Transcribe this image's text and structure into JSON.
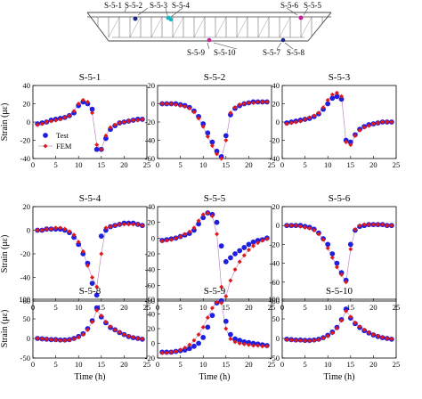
{
  "figure": {
    "colors": {
      "test": "#1f1fe0",
      "fem": "#e01a1a",
      "fem_line": "#c08ac8",
      "dot_cyan": "#17b6c4",
      "dot_magenta": "#c91e9c",
      "dot_navy": "#1c2a84"
    },
    "diagram": {
      "labels_top": [
        "S-5-1",
        "S-5-2",
        "S-5-3",
        "S-5-4",
        "S-5-6",
        "S-5-5"
      ],
      "labels_bottom": [
        "S-5-9",
        "S-5-10",
        "S-5-7",
        "S-5-8"
      ]
    },
    "shared_xlabel": "Time (h)",
    "shared_ylabel": "Strain (με)",
    "legend": {
      "test": "Test",
      "fem": "FEM"
    }
  },
  "chart_data": [
    {
      "type": "scatter",
      "title": "S-5-1",
      "xlim": [
        0,
        25
      ],
      "ylim": [
        -40,
        40
      ],
      "xticks": [
        0,
        5,
        10,
        15,
        20,
        25
      ],
      "yticks": [
        -40,
        -20,
        0,
        20,
        40
      ],
      "series": [
        {
          "name": "Test",
          "x": [
            1,
            2,
            3,
            4,
            5,
            6,
            7,
            8,
            9,
            10,
            11,
            12,
            13,
            14,
            15,
            16,
            17,
            18,
            19,
            20,
            21,
            22,
            23,
            24
          ],
          "y": [
            -2,
            -1,
            0,
            2,
            3,
            4,
            5,
            7,
            10,
            18,
            22,
            20,
            14,
            -30,
            -30,
            -18,
            -8,
            -4,
            -1,
            0,
            1,
            2,
            3,
            3
          ]
        },
        {
          "name": "FEM",
          "x": [
            1,
            2,
            3,
            4,
            5,
            6,
            7,
            8,
            9,
            10,
            11,
            12,
            13,
            14,
            15,
            16,
            17,
            18,
            19,
            20,
            21,
            22,
            23,
            24
          ],
          "y": [
            -3,
            -2,
            0,
            1,
            2,
            3,
            5,
            7,
            12,
            20,
            24,
            22,
            10,
            -25,
            -30,
            -15,
            -6,
            -3,
            -1,
            0,
            1,
            2,
            2,
            3
          ]
        }
      ]
    },
    {
      "type": "scatter",
      "title": "S-5-2",
      "xlim": [
        0,
        25
      ],
      "ylim": [
        -60,
        20
      ],
      "xticks": [
        0,
        5,
        10,
        15,
        20,
        25
      ],
      "yticks": [
        -60,
        -40,
        -20,
        0,
        20
      ],
      "series": [
        {
          "name": "Test",
          "x": [
            1,
            2,
            3,
            4,
            5,
            6,
            7,
            8,
            9,
            10,
            11,
            12,
            13,
            14,
            15,
            16,
            17,
            18,
            19,
            20,
            21,
            22,
            23,
            24
          ],
          "y": [
            0,
            0,
            0,
            0,
            -1,
            -2,
            -4,
            -8,
            -14,
            -22,
            -32,
            -42,
            -52,
            -58,
            -35,
            -12,
            -5,
            -2,
            0,
            1,
            2,
            2,
            2,
            2
          ]
        },
        {
          "name": "FEM",
          "x": [
            1,
            2,
            3,
            4,
            5,
            6,
            7,
            8,
            9,
            10,
            11,
            12,
            13,
            14,
            15,
            16,
            17,
            18,
            19,
            20,
            21,
            22,
            23,
            24
          ],
          "y": [
            0,
            0,
            0,
            -1,
            -2,
            -3,
            -5,
            -9,
            -16,
            -25,
            -36,
            -46,
            -55,
            -60,
            -40,
            -10,
            -4,
            -1,
            0,
            1,
            1,
            2,
            2,
            2
          ]
        }
      ]
    },
    {
      "type": "scatter",
      "title": "S-5-3",
      "xlim": [
        0,
        25
      ],
      "ylim": [
        -40,
        40
      ],
      "xticks": [
        0,
        5,
        10,
        15,
        20,
        25
      ],
      "yticks": [
        -40,
        -20,
        0,
        20,
        40
      ],
      "series": [
        {
          "name": "Test",
          "x": [
            1,
            2,
            3,
            4,
            5,
            6,
            7,
            8,
            9,
            10,
            11,
            12,
            13,
            14,
            15,
            16,
            17,
            18,
            19,
            20,
            21,
            22,
            23,
            24
          ],
          "y": [
            -1,
            0,
            1,
            2,
            3,
            4,
            6,
            9,
            14,
            20,
            26,
            28,
            25,
            -20,
            -22,
            -14,
            -8,
            -5,
            -3,
            -2,
            -1,
            0,
            0,
            0
          ]
        },
        {
          "name": "FEM",
          "x": [
            1,
            2,
            3,
            4,
            5,
            6,
            7,
            8,
            9,
            10,
            11,
            12,
            13,
            14,
            15,
            16,
            17,
            18,
            19,
            20,
            21,
            22,
            23,
            24
          ],
          "y": [
            -2,
            -1,
            0,
            1,
            3,
            5,
            7,
            10,
            16,
            24,
            30,
            32,
            28,
            -22,
            -25,
            -15,
            -9,
            -6,
            -4,
            -2,
            -1,
            0,
            0,
            0
          ]
        }
      ]
    },
    {
      "type": "scatter",
      "title": "S-5-4",
      "xlim": [
        0,
        25
      ],
      "ylim": [
        -60,
        20
      ],
      "xticks": [
        0,
        5,
        10,
        15,
        20,
        25
      ],
      "yticks": [
        -60,
        -40,
        -20,
        0,
        20
      ],
      "series": [
        {
          "name": "Test",
          "x": [
            1,
            2,
            3,
            4,
            5,
            6,
            7,
            8,
            9,
            10,
            11,
            12,
            13,
            14,
            15,
            16,
            17,
            18,
            19,
            20,
            21,
            22,
            23,
            24
          ],
          "y": [
            0,
            0,
            1,
            1,
            1,
            1,
            0,
            -2,
            -6,
            -12,
            -20,
            -28,
            -45,
            -55,
            -5,
            0,
            3,
            4,
            5,
            6,
            6,
            6,
            5,
            4
          ]
        },
        {
          "name": "FEM",
          "x": [
            1,
            2,
            3,
            4,
            5,
            6,
            7,
            8,
            9,
            10,
            11,
            12,
            13,
            14,
            15,
            16,
            17,
            18,
            19,
            20,
            21,
            22,
            23,
            24
          ],
          "y": [
            0,
            0,
            1,
            1,
            2,
            2,
            1,
            -1,
            -4,
            -10,
            -18,
            -30,
            -40,
            -48,
            -20,
            2,
            3,
            4,
            5,
            5,
            5,
            5,
            5,
            4
          ]
        }
      ]
    },
    {
      "type": "scatter",
      "title": "S-5-5",
      "xlim": [
        0,
        25
      ],
      "ylim": [
        -80,
        40
      ],
      "xticks": [
        0,
        5,
        10,
        15,
        20,
        25
      ],
      "yticks": [
        -80,
        -60,
        -40,
        -20,
        0,
        20,
        40
      ],
      "series": [
        {
          "name": "Test",
          "x": [
            1,
            2,
            3,
            4,
            5,
            6,
            7,
            8,
            9,
            10,
            11,
            12,
            13,
            14,
            15,
            16,
            17,
            18,
            19,
            20,
            21,
            22,
            23,
            24
          ],
          "y": [
            -3,
            -2,
            -1,
            0,
            2,
            4,
            6,
            10,
            18,
            26,
            32,
            30,
            20,
            -10,
            -30,
            -25,
            -20,
            -16,
            -12,
            -8,
            -5,
            -3,
            -2,
            0
          ]
        },
        {
          "name": "FEM",
          "x": [
            1,
            2,
            3,
            4,
            5,
            6,
            7,
            8,
            9,
            10,
            11,
            12,
            13,
            14,
            15,
            16,
            17,
            18,
            19,
            20,
            21,
            22,
            23,
            24
          ],
          "y": [
            -4,
            -3,
            -2,
            0,
            2,
            5,
            8,
            13,
            22,
            30,
            32,
            28,
            5,
            -62,
            -74,
            -54,
            -40,
            -30,
            -22,
            -15,
            -10,
            -6,
            -3,
            -1
          ]
        }
      ]
    },
    {
      "type": "scatter",
      "title": "S-5-6",
      "xlim": [
        0,
        25
      ],
      "ylim": [
        -80,
        20
      ],
      "xticks": [
        0,
        5,
        10,
        15,
        20,
        25
      ],
      "yticks": [
        -80,
        -60,
        -40,
        -20,
        0,
        20
      ],
      "series": [
        {
          "name": "Test",
          "x": [
            1,
            2,
            3,
            4,
            5,
            6,
            7,
            8,
            9,
            10,
            11,
            12,
            13,
            14,
            15,
            16,
            17,
            18,
            19,
            20,
            21,
            22,
            23,
            24
          ],
          "y": [
            0,
            0,
            0,
            0,
            -1,
            -2,
            -4,
            -8,
            -14,
            -20,
            -30,
            -40,
            -50,
            -58,
            -20,
            -5,
            -1,
            0,
            1,
            1,
            1,
            1,
            0,
            0
          ]
        },
        {
          "name": "FEM",
          "x": [
            1,
            2,
            3,
            4,
            5,
            6,
            7,
            8,
            9,
            10,
            11,
            12,
            13,
            14,
            15,
            16,
            17,
            18,
            19,
            20,
            21,
            22,
            23,
            24
          ],
          "y": [
            0,
            0,
            0,
            -1,
            -2,
            -3,
            -5,
            -9,
            -15,
            -24,
            -34,
            -44,
            -52,
            -60,
            -25,
            -4,
            0,
            1,
            1,
            1,
            1,
            1,
            0,
            0
          ]
        }
      ]
    },
    {
      "type": "scatter",
      "title": "S-5-8",
      "xlim": [
        0,
        25
      ],
      "ylim": [
        -50,
        100
      ],
      "xticks": [
        0,
        5,
        10,
        15,
        20,
        25
      ],
      "yticks": [
        -50,
        0,
        50,
        100
      ],
      "series": [
        {
          "name": "Test",
          "x": [
            1,
            2,
            3,
            4,
            5,
            6,
            7,
            8,
            9,
            10,
            11,
            12,
            13,
            14,
            15,
            16,
            17,
            18,
            19,
            20,
            21,
            22,
            23,
            24
          ],
          "y": [
            0,
            -1,
            -2,
            -3,
            -3,
            -4,
            -4,
            -3,
            0,
            5,
            12,
            25,
            45,
            78,
            55,
            40,
            28,
            22,
            15,
            10,
            5,
            2,
            0,
            -2
          ]
        },
        {
          "name": "FEM",
          "x": [
            1,
            2,
            3,
            4,
            5,
            6,
            7,
            8,
            9,
            10,
            11,
            12,
            13,
            14,
            15,
            16,
            17,
            18,
            19,
            20,
            21,
            22,
            23,
            24
          ],
          "y": [
            0,
            -1,
            -2,
            -3,
            -4,
            -5,
            -5,
            -4,
            -1,
            3,
            10,
            22,
            42,
            72,
            58,
            42,
            30,
            22,
            16,
            10,
            6,
            3,
            0,
            -1
          ]
        }
      ]
    },
    {
      "type": "scatter",
      "title": "S-5-9",
      "xlim": [
        0,
        25
      ],
      "ylim": [
        -20,
        60
      ],
      "xticks": [
        0,
        5,
        10,
        15,
        20,
        25
      ],
      "yticks": [
        -20,
        0,
        20,
        40,
        60
      ],
      "series": [
        {
          "name": "Test",
          "x": [
            1,
            2,
            3,
            4,
            5,
            6,
            7,
            8,
            9,
            10,
            11,
            12,
            13,
            14,
            15,
            16,
            17,
            18,
            19,
            20,
            21,
            22,
            23,
            24
          ],
          "y": [
            -12,
            -12,
            -12,
            -11,
            -10,
            -9,
            -7,
            -4,
            0,
            8,
            22,
            38,
            55,
            58,
            30,
            12,
            6,
            4,
            2,
            1,
            0,
            -1,
            -2,
            -3
          ]
        },
        {
          "name": "FEM",
          "x": [
            1,
            2,
            3,
            4,
            5,
            6,
            7,
            8,
            9,
            10,
            11,
            12,
            13,
            14,
            15,
            16,
            17,
            18,
            19,
            20,
            21,
            22,
            23,
            24
          ],
          "y": [
            -13,
            -13,
            -12,
            -11,
            -9,
            -6,
            -2,
            4,
            12,
            22,
            35,
            48,
            56,
            55,
            20,
            6,
            2,
            0,
            -1,
            -2,
            -3,
            -3,
            -4,
            -4
          ]
        }
      ]
    },
    {
      "type": "scatter",
      "title": "S-5-10",
      "xlim": [
        0,
        25
      ],
      "ylim": [
        -50,
        100
      ],
      "xticks": [
        0,
        5,
        10,
        15,
        20,
        25
      ],
      "yticks": [
        -50,
        0,
        50,
        100
      ],
      "series": [
        {
          "name": "Test",
          "x": [
            1,
            2,
            3,
            4,
            5,
            6,
            7,
            8,
            9,
            10,
            11,
            12,
            13,
            14,
            15,
            16,
            17,
            18,
            19,
            20,
            21,
            22,
            23,
            24
          ],
          "y": [
            -2,
            -3,
            -4,
            -4,
            -5,
            -5,
            -4,
            -2,
            2,
            8,
            16,
            28,
            48,
            75,
            52,
            38,
            28,
            20,
            14,
            9,
            5,
            2,
            0,
            -2
          ]
        },
        {
          "name": "FEM",
          "x": [
            1,
            2,
            3,
            4,
            5,
            6,
            7,
            8,
            9,
            10,
            11,
            12,
            13,
            14,
            15,
            16,
            17,
            18,
            19,
            20,
            21,
            22,
            23,
            24
          ],
          "y": [
            -3,
            -4,
            -5,
            -5,
            -6,
            -6,
            -5,
            -3,
            1,
            6,
            14,
            26,
            46,
            70,
            55,
            40,
            30,
            22,
            15,
            10,
            6,
            3,
            0,
            -1
          ]
        }
      ]
    }
  ]
}
